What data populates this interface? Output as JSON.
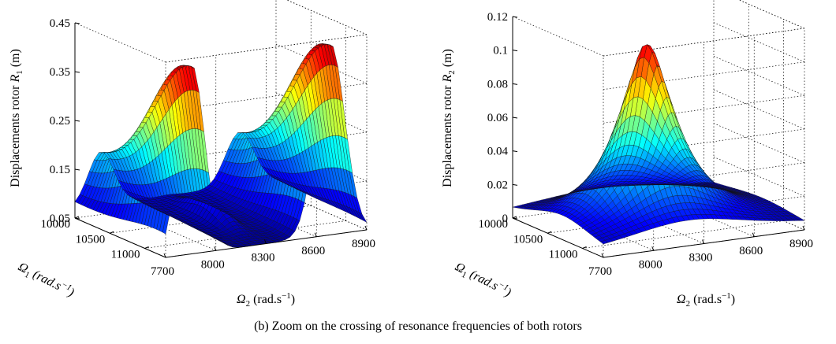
{
  "caption": "(b) Zoom on the crossing of resonance frequencies of both rotors",
  "colormap": [
    "#00008f",
    "#0000ff",
    "#0080ff",
    "#00ffff",
    "#80ff80",
    "#ffff00",
    "#ff8000",
    "#ff0000",
    "#800000"
  ],
  "chart_data": [
    {
      "type": "surface",
      "zlabel_prefix": "Displacements rotor ",
      "zlabel_symbol": "R",
      "zlabel_sub": "1",
      "zlabel_unit": " (m)",
      "x1label_sym": "Ω",
      "x1label_sub": "1",
      "x1label_unit": " (rad.s",
      "x1label_exp": "−1",
      "x1label_close": ")",
      "x2label_sym": "Ω",
      "x2label_sub": "2",
      "x2label_unit": " (rad.s",
      "x2label_exp": "−1",
      "x2label_close": ")",
      "omega1_ticks": [
        "10000",
        "10500",
        "11000"
      ],
      "omega2_ticks": [
        "7700",
        "8000",
        "8300",
        "8600",
        "8900"
      ],
      "z_ticks": [
        "0.05",
        "0.15",
        "0.25",
        "0.35",
        "0.45"
      ],
      "omega1_range": [
        10000,
        11300
      ],
      "omega2_range": [
        7700,
        8900
      ],
      "z_range": [
        0.05,
        0.45
      ],
      "peak_value": 0.45,
      "grid": "on"
    },
    {
      "type": "surface",
      "zlabel_prefix": "Displacements rotor ",
      "zlabel_symbol": "R",
      "zlabel_sub": "2",
      "zlabel_unit": " (m)",
      "x1label_sym": "Ω",
      "x1label_sub": "1",
      "x1label_unit": " (rad.s",
      "x1label_exp": "−1",
      "x1label_close": ")",
      "x2label_sym": "Ω",
      "x2label_sub": "2",
      "x2label_unit": " (rad.s",
      "x2label_exp": "−1",
      "x2label_close": ")",
      "omega1_ticks": [
        "10000",
        "10500",
        "11000"
      ],
      "omega2_ticks": [
        "7700",
        "8000",
        "8300",
        "8600",
        "8900"
      ],
      "z_ticks": [
        "0",
        "0.02",
        "0.04",
        "0.06",
        "0.08",
        "0.1",
        "0.12"
      ],
      "omega1_range": [
        10000,
        11300
      ],
      "omega2_range": [
        7700,
        8900
      ],
      "z_range": [
        0,
        0.12
      ],
      "peak_value": 0.105,
      "grid": "on"
    }
  ]
}
